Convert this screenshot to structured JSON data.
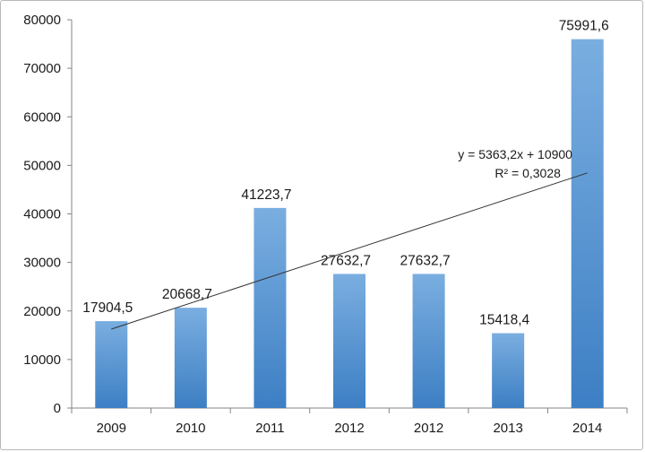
{
  "chart_data": {
    "type": "bar",
    "categories": [
      "2009",
      "2010",
      "2011",
      "2012",
      "2012",
      "2013",
      "2014"
    ],
    "values": [
      17904.5,
      20668.7,
      41223.7,
      27632.7,
      27632.7,
      15418.4,
      75991.6
    ],
    "data_labels": [
      "17904,5",
      "20668,7",
      "41223,7",
      "27632,7",
      "27632,7",
      "15418,4",
      "75991,6"
    ],
    "ylim": [
      0,
      80000
    ],
    "yticks": [
      "0",
      "10000",
      "20000",
      "30000",
      "40000",
      "50000",
      "60000",
      "70000",
      "80000"
    ],
    "grid": false,
    "bar_color_top": "#7aaee0",
    "bar_color_bottom": "#3d7fc4",
    "trendline": {
      "type": "linear",
      "slope": 5363.2,
      "intercept": 10900,
      "equation": "y = 5363,2x + 10900",
      "r_squared": "R² = 0,3028"
    }
  }
}
